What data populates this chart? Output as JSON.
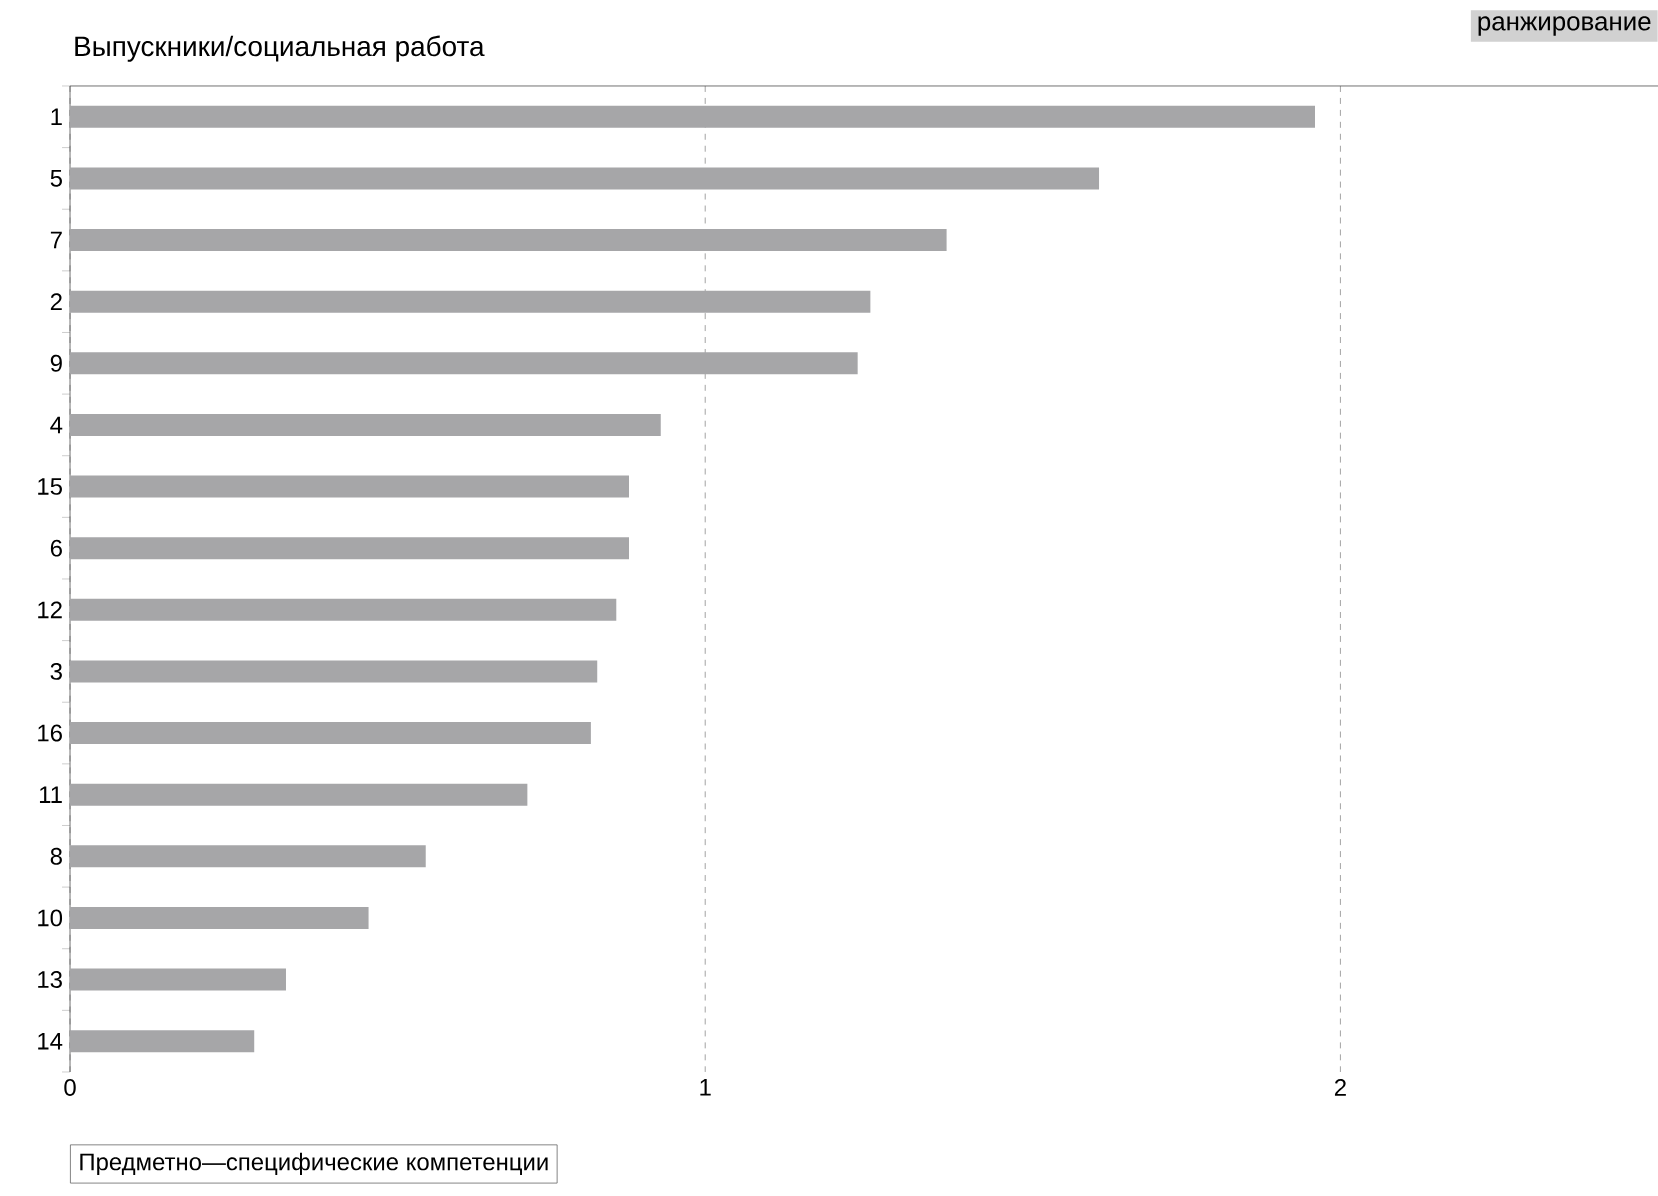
{
  "chart_data": {
    "type": "bar",
    "orientation": "horizontal",
    "title": "Выпускники/социальная работа",
    "xlabel": "Предметно—специфические компетенции",
    "annotations": [
      "ранжирование"
    ],
    "categories": [
      "1",
      "5",
      "7",
      "2",
      "9",
      "4",
      "15",
      "6",
      "12",
      "3",
      "16",
      "11",
      "8",
      "10",
      "13",
      "14"
    ],
    "values": [
      1.96,
      1.62,
      1.38,
      1.26,
      1.24,
      0.93,
      0.88,
      0.88,
      0.86,
      0.83,
      0.82,
      0.72,
      0.56,
      0.47,
      0.34,
      0.29
    ],
    "color": "#a6a6a8",
    "xlim": [
      0,
      2.5
    ],
    "xticks": [
      0,
      1,
      2
    ],
    "grid": "x"
  }
}
